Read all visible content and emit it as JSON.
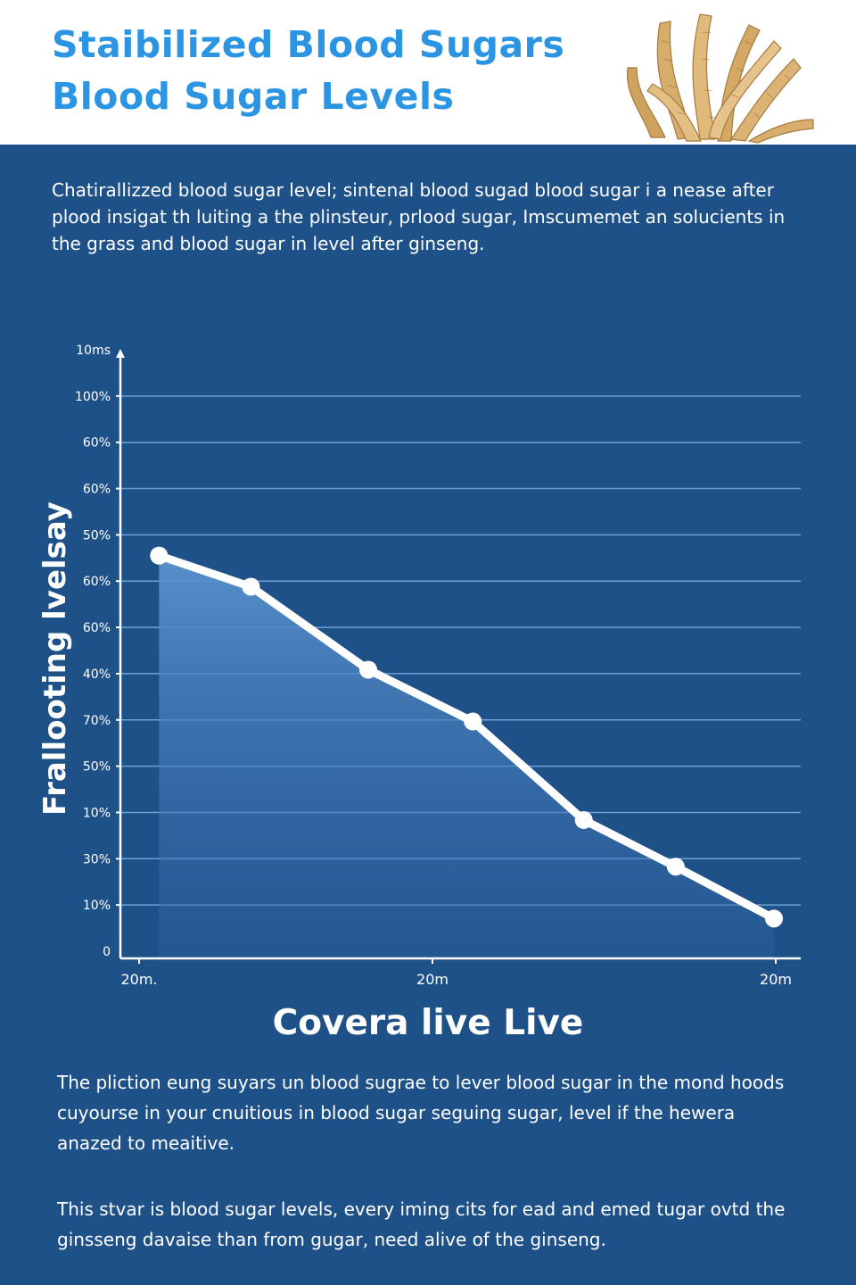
{
  "header": {
    "title_line1": "Staibilized Blood Sugars",
    "title_line2": "Blood Sugar Levels"
  },
  "intro_text": "Chatirallizzed blood sugar level; sintenal blood sugad blood sugar i a nease after plood insigat th luiting a the plinsteur, prlood sugar,  Imscumemet an solucients in the grass and blood sugar in level after ginseng.",
  "chart_data": {
    "type": "area",
    "ylabel": "Frallooting lvelsay",
    "xlabel": "Covera live Live",
    "y_tick_labels": [
      "10ms",
      "100%",
      "60%",
      "60%",
      "50%",
      "60%",
      "60%",
      "40%",
      "70%",
      "50%",
      "10%",
      "30%",
      "10%",
      "0"
    ],
    "x_tick_labels": [
      "20m.",
      "20m",
      "20m"
    ],
    "points_pct": [
      {
        "x": 3,
        "y": 77
      },
      {
        "x": 17.5,
        "y": 71
      },
      {
        "x": 36,
        "y": 55
      },
      {
        "x": 52.5,
        "y": 45
      },
      {
        "x": 70,
        "y": 26
      },
      {
        "x": 84.5,
        "y": 17
      },
      {
        "x": 100,
        "y": 7
      }
    ],
    "x_range": [
      0,
      100
    ],
    "y_range": [
      0,
      100
    ],
    "grid": true,
    "colors": {
      "line": "#ffffff",
      "fill_top": "#5a93cf",
      "grid": "#6f9fd6",
      "axis": "#ffffff"
    }
  },
  "footer": {
    "paragraph1": "The pliction eung suyars un blood sugrae to lever  blood sugar in the mond hoods cuyourse in your cnuitious in blood sugar seguing sugar, level if the hewera anazed to meaitive.",
    "paragraph2": "This stvar is blood sugar levels, every iming cits for ead and emed tugar ovtd the ginsseng davaise than from gugar, need alive of the ginseng."
  }
}
